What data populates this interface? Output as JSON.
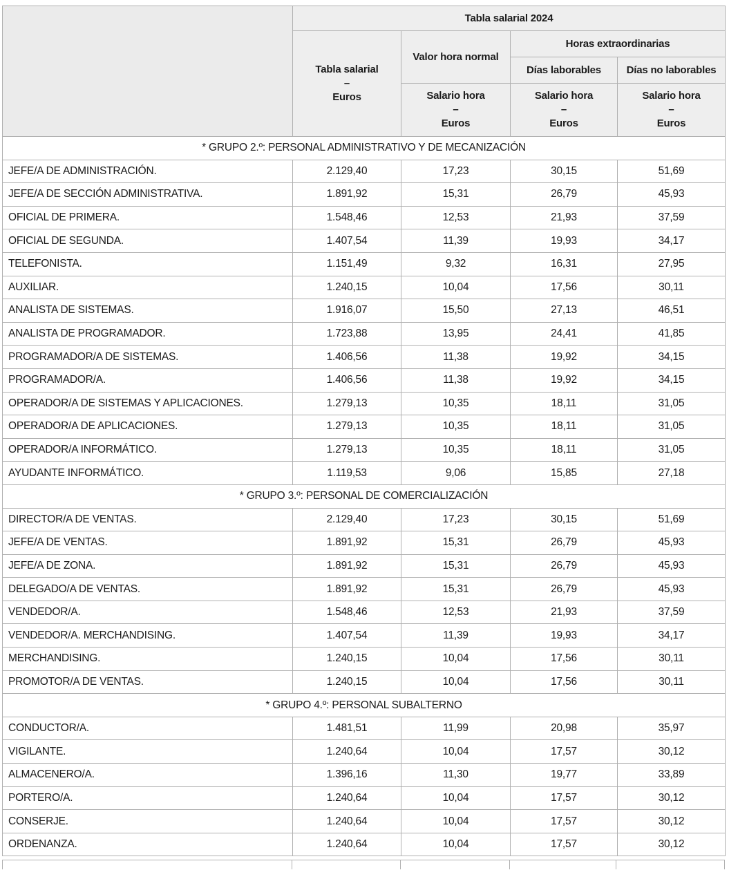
{
  "header": {
    "title": "Tabla salarial 2024",
    "tabla_salarial": "Tabla salarial",
    "dash": "–",
    "euros": "Euros",
    "valor_hora_normal": "Valor hora normal",
    "horas_extraordinarias": "Horas extraordinarias",
    "dias_laborables": "Días laborables",
    "dias_no_laborables": "Días no laborables",
    "salario_hora": "Salario hora"
  },
  "groups": [
    {
      "label": "* GRUPO 2.º: PERSONAL ADMINISTRATIVO Y DE MECANIZACIÓN",
      "rows": [
        [
          "JEFE/A DE ADMINISTRACIÓN.",
          "2.129,40",
          "17,23",
          "30,15",
          "51,69"
        ],
        [
          "JEFE/A DE SECCIÓN ADMINISTRATIVA.",
          "1.891,92",
          "15,31",
          "26,79",
          "45,93"
        ],
        [
          "OFICIAL DE PRIMERA.",
          "1.548,46",
          "12,53",
          "21,93",
          "37,59"
        ],
        [
          "OFICIAL DE SEGUNDA.",
          "1.407,54",
          "11,39",
          "19,93",
          "34,17"
        ],
        [
          "TELEFONISTA.",
          "1.151,49",
          "9,32",
          "16,31",
          "27,95"
        ],
        [
          "AUXILIAR.",
          "1.240,15",
          "10,04",
          "17,56",
          "30,11"
        ],
        [
          "ANALISTA DE SISTEMAS.",
          "1.916,07",
          "15,50",
          "27,13",
          "46,51"
        ],
        [
          "ANALISTA DE PROGRAMADOR.",
          "1.723,88",
          "13,95",
          "24,41",
          "41,85"
        ],
        [
          "PROGRAMADOR/A DE SISTEMAS.",
          "1.406,56",
          "11,38",
          "19,92",
          "34,15"
        ],
        [
          "PROGRAMADOR/A.",
          "1.406,56",
          "11,38",
          "19,92",
          "34,15"
        ],
        [
          "OPERADOR/A DE SISTEMAS Y APLICACIONES.",
          "1.279,13",
          "10,35",
          "18,11",
          "31,05"
        ],
        [
          "OPERADOR/A DE APLICACIONES.",
          "1.279,13",
          "10,35",
          "18,11",
          "31,05"
        ],
        [
          "OPERADOR/A INFORMÁTICO.",
          "1.279,13",
          "10,35",
          "18,11",
          "31,05"
        ],
        [
          "AYUDANTE INFORMÁTICO.",
          "1.119,53",
          "9,06",
          "15,85",
          "27,18"
        ]
      ]
    },
    {
      "label": "* GRUPO 3.º: PERSONAL DE COMERCIALIZACIÓN",
      "rows": [
        [
          "DIRECTOR/A DE VENTAS.",
          "2.129,40",
          "17,23",
          "30,15",
          "51,69"
        ],
        [
          "JEFE/A DE VENTAS.",
          "1.891,92",
          "15,31",
          "26,79",
          "45,93"
        ],
        [
          "JEFE/A DE ZONA.",
          "1.891,92",
          "15,31",
          "26,79",
          "45,93"
        ],
        [
          "DELEGADO/A DE VENTAS.",
          "1.891,92",
          "15,31",
          "26,79",
          "45,93"
        ],
        [
          "VENDEDOR/A.",
          "1.548,46",
          "12,53",
          "21,93",
          "37,59"
        ],
        [
          "VENDEDOR/A. MERCHANDISING.",
          "1.407,54",
          "11,39",
          "19,93",
          "34,17"
        ],
        [
          "MERCHANDISING.",
          "1.240,15",
          "10,04",
          "17,56",
          "30,11"
        ],
        [
          "PROMOTOR/A DE VENTAS.",
          "1.240,15",
          "10,04",
          "17,56",
          "30,11"
        ]
      ]
    },
    {
      "label": "* GRUPO 4.º: PERSONAL SUBALTERNO",
      "rows": [
        [
          "CONDUCTOR/A.",
          "1.481,51",
          "11,99",
          "20,98",
          "35,97"
        ],
        [
          "VIGILANTE.",
          "1.240,64",
          "10,04",
          "17,57",
          "30,12"
        ],
        [
          "ALMACENERO/A.",
          "1.396,16",
          "11,30",
          "19,77",
          "33,89"
        ],
        [
          "PORTERO/A.",
          "1.240,64",
          "10,04",
          "17,57",
          "30,12"
        ],
        [
          "CONSERJE.",
          "1.240,64",
          "10,04",
          "17,57",
          "30,12"
        ],
        [
          "ORDENANZA.",
          "1.240,64",
          "10,04",
          "17,57",
          "30,12"
        ]
      ]
    }
  ]
}
